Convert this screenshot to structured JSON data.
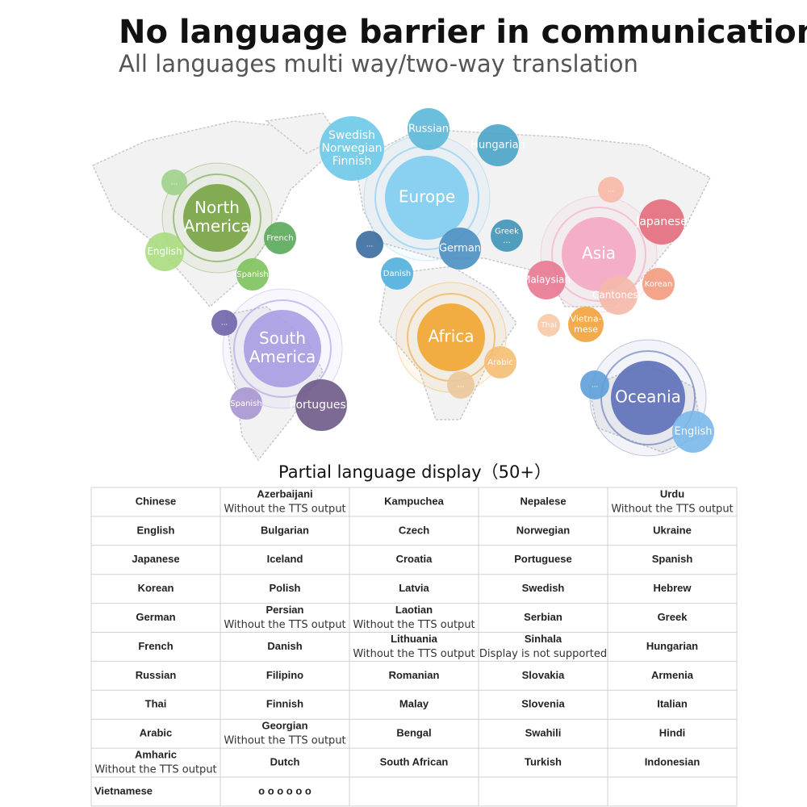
{
  "header": {
    "title": "No language barrier in communication",
    "subtitle": "All languages multi way/two-way translation"
  },
  "map": {
    "bubbles": [
      {
        "lines": [
          "North",
          "America"
        ]
      },
      {
        "lines": [
          "..."
        ]
      },
      {
        "lines": [
          "English"
        ]
      },
      {
        "lines": [
          "French"
        ]
      },
      {
        "lines": [
          "Spanish"
        ]
      },
      {
        "lines": [
          "Europe"
        ]
      },
      {
        "lines": [
          "Swedish",
          "Norwegian",
          "Finnish"
        ]
      },
      {
        "lines": [
          "Russian"
        ]
      },
      {
        "lines": [
          "Hungarian"
        ]
      },
      {
        "lines": [
          "..."
        ]
      },
      {
        "lines": [
          "Danish"
        ]
      },
      {
        "lines": [
          "German"
        ]
      },
      {
        "lines": [
          "Greek",
          "..."
        ]
      },
      {
        "lines": [
          "Asia"
        ]
      },
      {
        "lines": [
          "..."
        ]
      },
      {
        "lines": [
          "Japanese"
        ]
      },
      {
        "lines": [
          "Malaysian"
        ]
      },
      {
        "lines": [
          "Korean"
        ]
      },
      {
        "lines": [
          "Cantonese"
        ]
      },
      {
        "lines": [
          "Thai"
        ]
      },
      {
        "lines": [
          "Vietna-",
          "mese"
        ]
      },
      {
        "lines": [
          "South",
          "America"
        ]
      },
      {
        "lines": [
          "..."
        ]
      },
      {
        "lines": [
          "Spanish"
        ]
      },
      {
        "lines": [
          "Portuguese"
        ]
      },
      {
        "lines": [
          "Africa"
        ]
      },
      {
        "lines": [
          "Arabic"
        ]
      },
      {
        "lines": [
          "..."
        ]
      },
      {
        "lines": [
          "Oceania"
        ]
      },
      {
        "lines": [
          "..."
        ]
      },
      {
        "lines": [
          "English"
        ]
      }
    ]
  },
  "table": {
    "caption": "Partial language display（50+）",
    "rows": [
      [
        [
          "Chinese"
        ],
        [
          "Azerbaijani",
          "Without the TTS output"
        ],
        [
          "Kampuchea"
        ],
        [
          "Nepalese"
        ],
        [
          "Urdu",
          "Without the TTS output"
        ]
      ],
      [
        [
          "English"
        ],
        [
          "Bulgarian"
        ],
        [
          "Czech"
        ],
        [
          "Norwegian"
        ],
        [
          "Ukraine"
        ]
      ],
      [
        [
          "Japanese"
        ],
        [
          "Iceland"
        ],
        [
          "Croatia"
        ],
        [
          "Portuguese"
        ],
        [
          "Spanish"
        ]
      ],
      [
        [
          "Korean"
        ],
        [
          "Polish"
        ],
        [
          "Latvia"
        ],
        [
          "Swedish"
        ],
        [
          "Hebrew"
        ]
      ],
      [
        [
          "German"
        ],
        [
          "Persian",
          "Without the TTS output"
        ],
        [
          "Laotian",
          "Without the TTS output"
        ],
        [
          "Serbian"
        ],
        [
          "Greek"
        ]
      ],
      [
        [
          "French"
        ],
        [
          "Danish"
        ],
        [
          "Lithuania",
          "Without the TTS output"
        ],
        [
          "Sinhala",
          "Display is not supported"
        ],
        [
          "Hungarian"
        ]
      ],
      [
        [
          "Russian"
        ],
        [
          "Filipino"
        ],
        [
          "Romanian"
        ],
        [
          "Slovakia"
        ],
        [
          "Armenia"
        ]
      ],
      [
        [
          "Thai"
        ],
        [
          "Finnish"
        ],
        [
          "Malay"
        ],
        [
          "Slovenia"
        ],
        [
          "Italian"
        ]
      ],
      [
        [
          "Arabic"
        ],
        [
          "Georgian",
          "Without the TTS output"
        ],
        [
          "Bengal"
        ],
        [
          "Swahili"
        ],
        [
          "Hindi"
        ]
      ],
      [
        [
          "Amharic",
          "Without the TTS output"
        ],
        [
          "Dutch"
        ],
        [
          "South African"
        ],
        [
          "Turkish"
        ],
        [
          "Indonesian"
        ]
      ],
      [
        [
          "Vietnamese"
        ],
        [
          "o o o o o o"
        ]
      ]
    ]
  }
}
